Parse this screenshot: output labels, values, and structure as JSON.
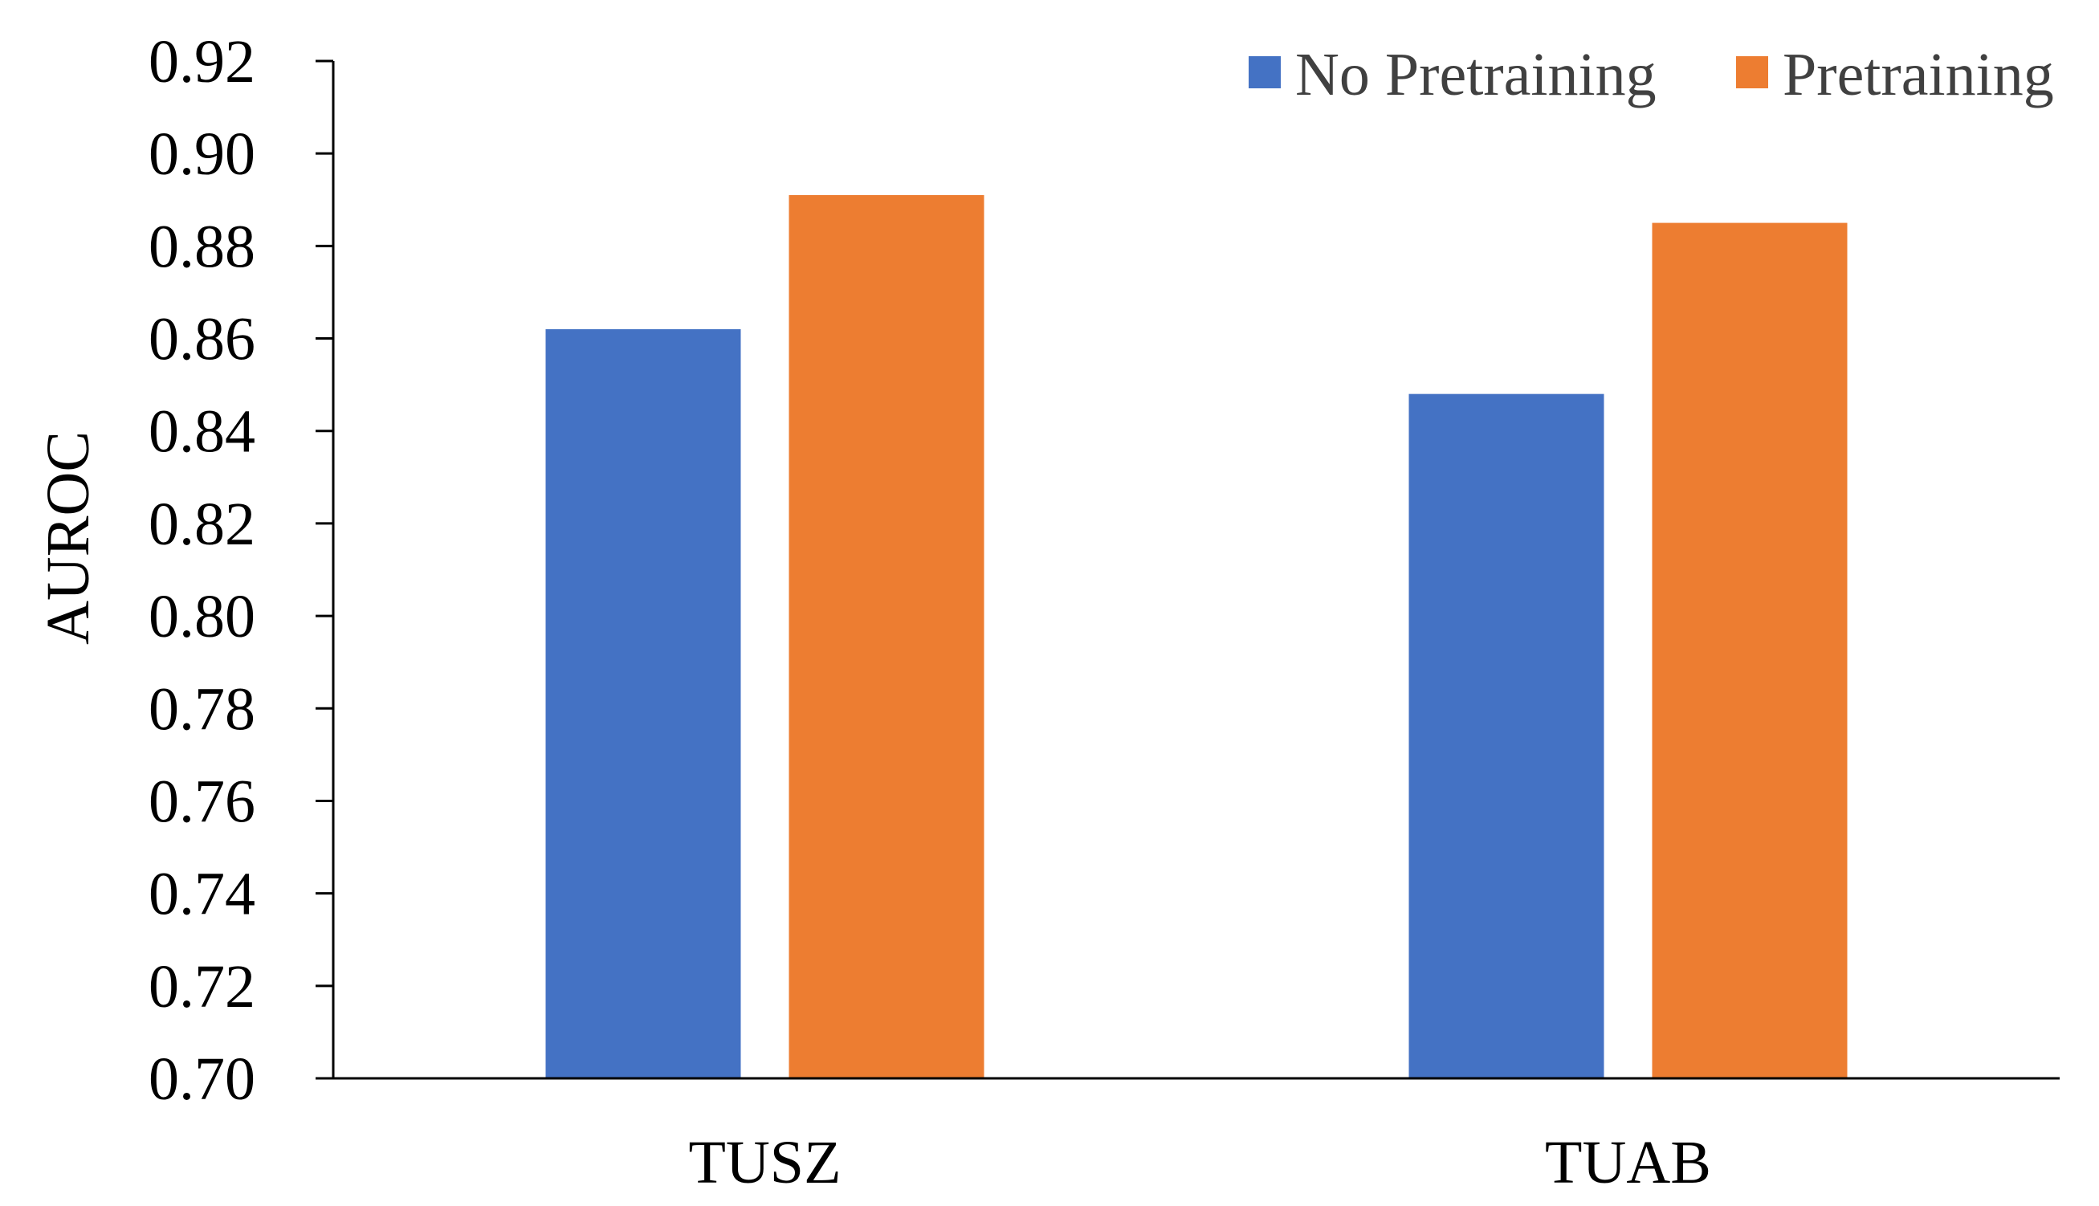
{
  "chart_data": {
    "type": "bar",
    "title": "",
    "xlabel": "",
    "ylabel": "AUROC",
    "categories": [
      "TUSZ",
      "TUAB"
    ],
    "series": [
      {
        "name": "No Pretraining",
        "color": "#4472C4",
        "values": [
          0.862,
          0.848
        ]
      },
      {
        "name": "Pretraining",
        "color": "#ED7D31",
        "values": [
          0.891,
          0.885
        ]
      }
    ],
    "ylim": [
      0.7,
      0.92
    ],
    "yticks": [
      "0.70",
      "0.72",
      "0.74",
      "0.76",
      "0.78",
      "0.80",
      "0.82",
      "0.84",
      "0.86",
      "0.88",
      "0.90",
      "0.92"
    ],
    "grid": false,
    "legend_position": "top-right"
  }
}
